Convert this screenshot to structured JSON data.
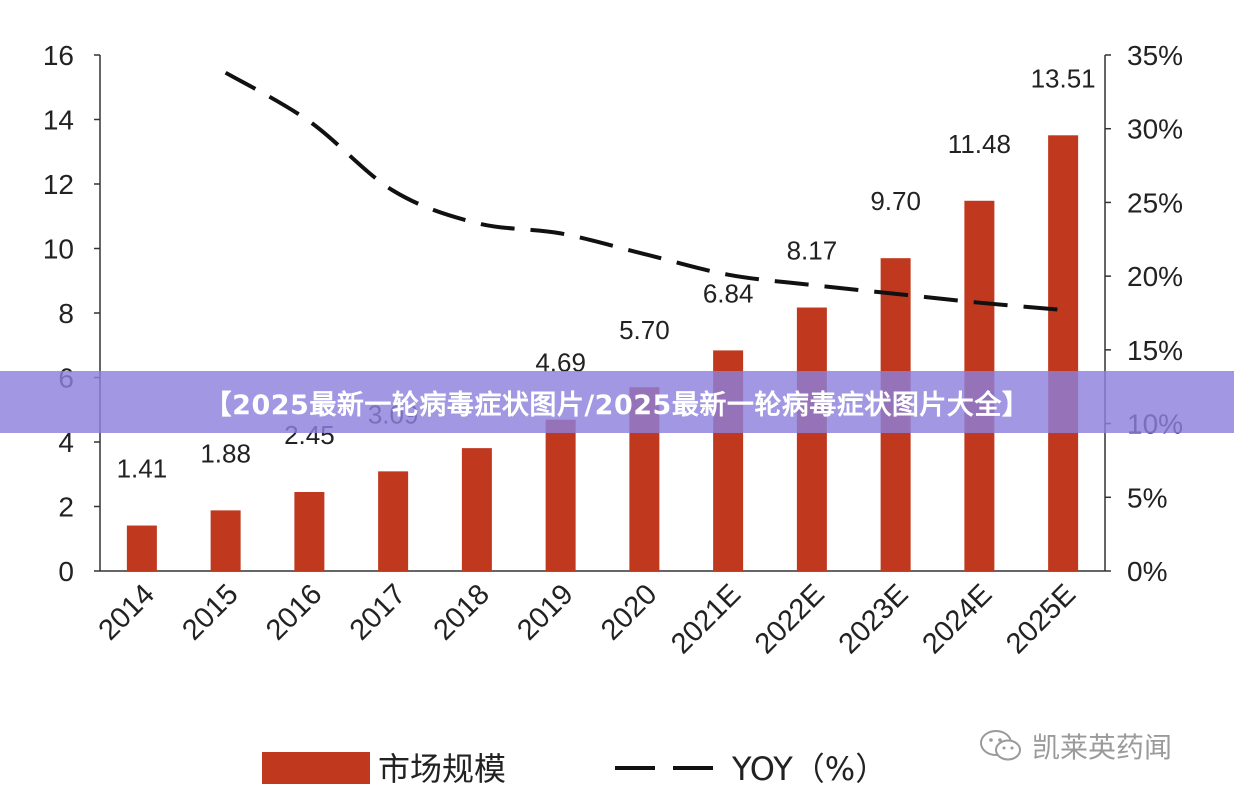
{
  "chart_data": {
    "type": "bar",
    "categories": [
      "2014",
      "2015",
      "2016",
      "2017",
      "2018",
      "2019",
      "2020",
      "2021E",
      "2022E",
      "2023E",
      "2024E",
      "2025E"
    ],
    "series": [
      {
        "name": "市场规模",
        "type": "bar",
        "values": [
          1.41,
          1.88,
          2.45,
          3.09,
          3.81,
          4.69,
          5.7,
          6.84,
          8.17,
          9.7,
          11.48,
          13.51
        ],
        "labels": [
          "1.41",
          "1.88",
          "2.45",
          "3.09",
          "",
          "4.69",
          "5.70",
          "6.84",
          "8.17",
          "9.70",
          "11.48",
          "13.51"
        ]
      },
      {
        "name": "YOY（%）",
        "type": "line",
        "axis": "right",
        "values": [
          null,
          33.8,
          30.5,
          25.8,
          23.6,
          22.9,
          21.5,
          20.1,
          19.4,
          18.8,
          18.2,
          17.7
        ]
      }
    ],
    "y_left": {
      "ylim": [
        0,
        16
      ],
      "ticks": [
        "0",
        "2",
        "4",
        "6",
        "8",
        "10",
        "12",
        "14",
        "16"
      ]
    },
    "y_right": {
      "ylim": [
        0,
        35
      ],
      "ticks": [
        "0%",
        "5%",
        "10%",
        "15%",
        "20%",
        "25%",
        "30%",
        "35%"
      ]
    },
    "grid": false,
    "legend_position": "bottom",
    "colors": {
      "bar": "#c0391f",
      "line": "#111111",
      "axis": "#333333",
      "text": "#222222"
    }
  },
  "banner": {
    "text": "【2025最新一轮病毒症状图片/2025最新一轮病毒症状图片大全】",
    "color": "#8c80dc"
  },
  "watermark": {
    "text": "凯莱英药闻",
    "icon": "wechat-icon"
  }
}
